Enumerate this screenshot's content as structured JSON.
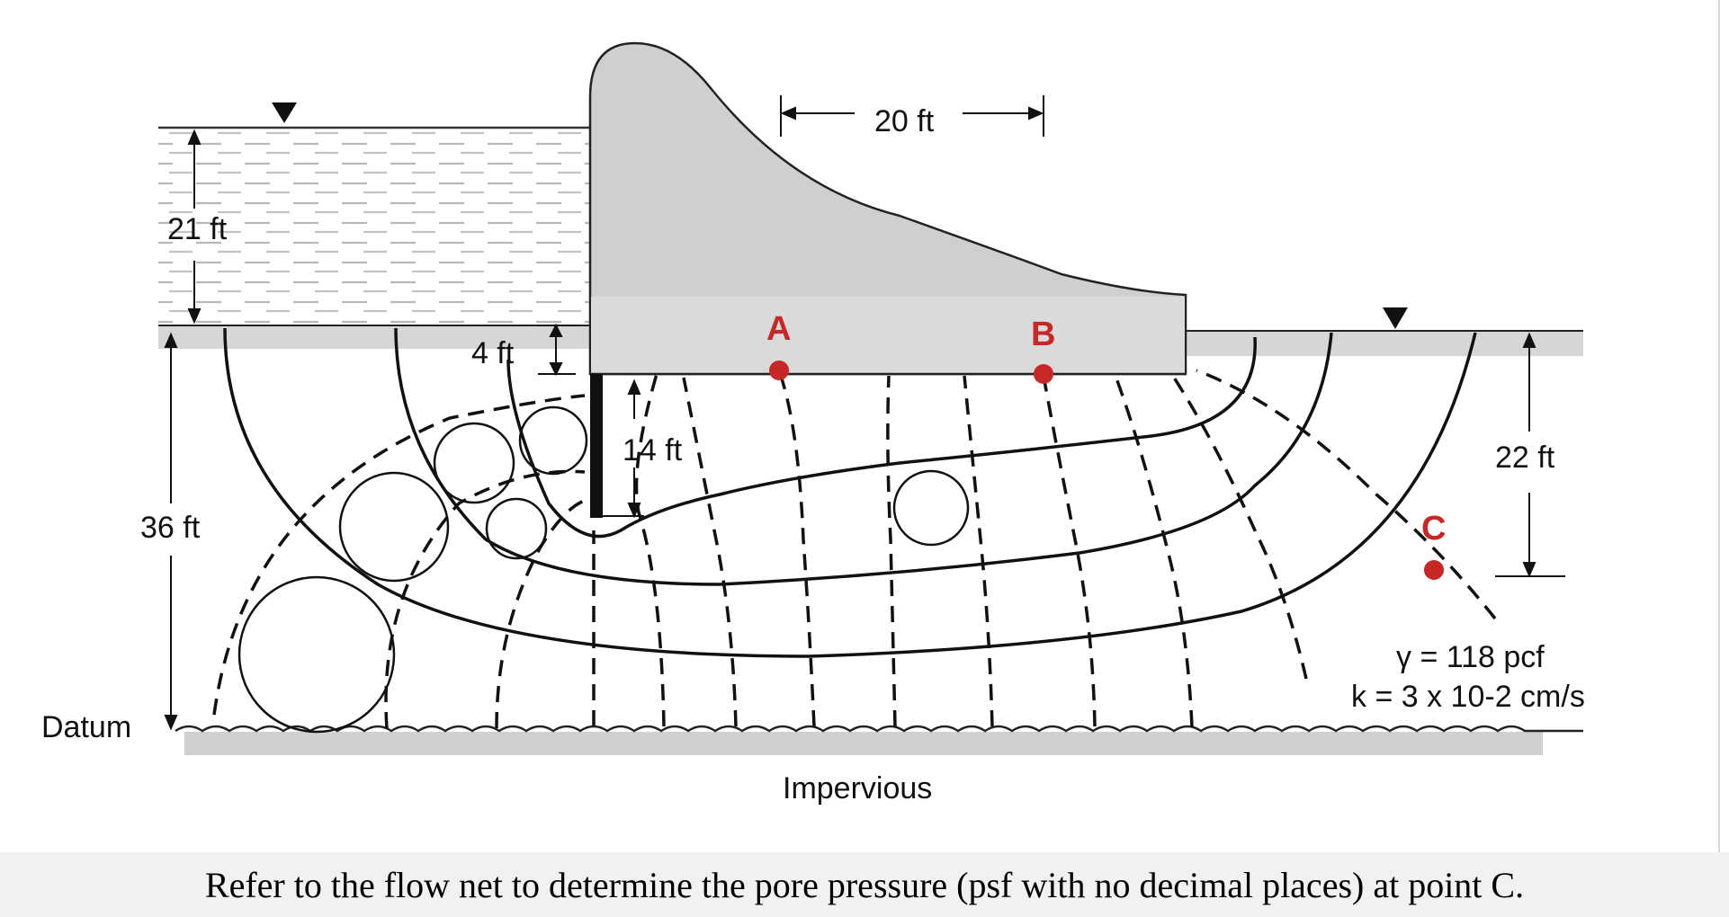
{
  "figure": {
    "dimensions": {
      "headwater_depth": "21 ft",
      "cutoff_top": "4 ft",
      "cutoff_length": "14 ft",
      "spacing_A_B": "20 ft",
      "soil_depth": "36 ft",
      "point_C_height": "22 ft"
    },
    "labels": {
      "datum": "Datum",
      "impervious": "Impervious"
    },
    "points": [
      {
        "name": "A",
        "color": "#c62828"
      },
      {
        "name": "B",
        "color": "#c62828"
      },
      {
        "name": "C",
        "color": "#c62828"
      }
    ],
    "properties": {
      "unit_weight": "γ = 118 pcf",
      "permeability": "k = 3 x 10-2 cm/s"
    },
    "colors": {
      "dam": "#cfcfcf",
      "dam_base": "#dadada",
      "ground_strip": "#d6d6d6",
      "lines": "#111111",
      "points": "#c62828"
    }
  },
  "question": {
    "text": "Refer to the flow net to determine the pore pressure (psf with no decimal places) at point C."
  }
}
